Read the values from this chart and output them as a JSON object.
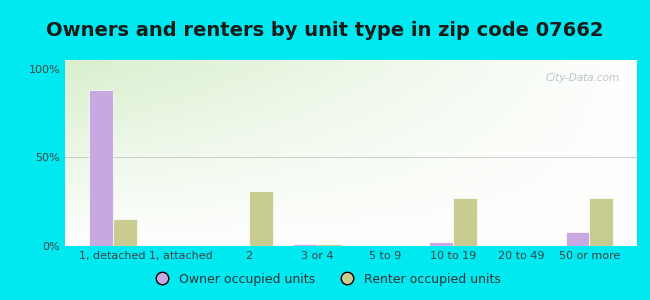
{
  "title": "Owners and renters by unit type in zip code 07662",
  "categories": [
    "1, detached",
    "1, attached",
    "2",
    "3 or 4",
    "5 to 9",
    "10 to 19",
    "20 to 49",
    "50 or more"
  ],
  "owner_values": [
    88,
    0,
    0,
    1,
    0,
    2,
    0,
    8
  ],
  "renter_values": [
    15,
    0,
    31,
    1,
    0,
    27,
    0,
    27
  ],
  "owner_color": "#c8a8e0",
  "renter_color": "#c8cc90",
  "background_outer": "#00e8f0",
  "grad_top_left": "#c8e8b8",
  "grad_bottom_right": "#ffffff",
  "ylabel_ticks": [
    "0%",
    "50%",
    "100%"
  ],
  "ytick_vals": [
    0,
    50,
    100
  ],
  "bar_width": 0.35,
  "title_fontsize": 14,
  "tick_fontsize": 8,
  "legend_fontsize": 9,
  "watermark": "City-Data.com",
  "ymax": 105
}
